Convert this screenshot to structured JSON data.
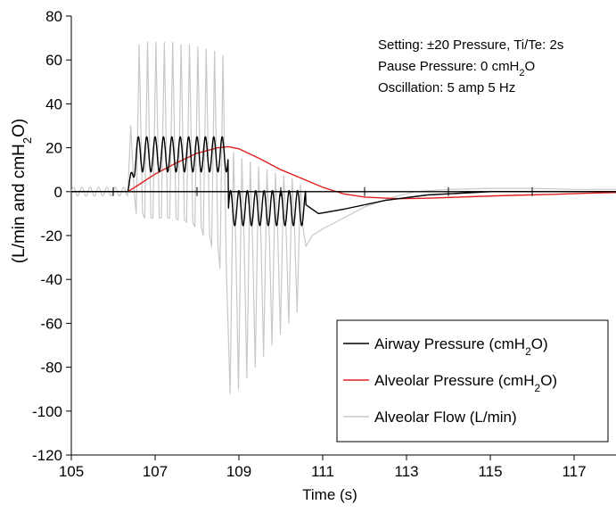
{
  "chart_data": {
    "type": "line",
    "xlabel": "Time (s)",
    "ylabel": {
      "main": "(L/min and cmH",
      "sub": "2",
      "tail": "O)"
    },
    "xlim": [
      105,
      118
    ],
    "ylim": [
      -120,
      80
    ],
    "x_ticks": [
      105,
      107,
      109,
      111,
      113,
      115,
      117
    ],
    "y_ticks": [
      -120,
      -100,
      -80,
      -60,
      -40,
      -20,
      0,
      20,
      40,
      60,
      80
    ],
    "grid": false,
    "legend_position": "bottom-right",
    "annotations": [
      {
        "text": "Setting: ±20 Pressure, Ti/Te: 2s"
      },
      {
        "main": "Pause Pressure: 0 cmH",
        "sub": "2",
        "tail": "O"
      },
      {
        "text": "Oscillation: 5 amp 5 Hz"
      }
    ],
    "series": [
      {
        "name": "Airway Pressure",
        "legend": {
          "main": "Airway Pressure  (cmH",
          "sub": "2",
          "tail": "O)"
        },
        "color": "#000000",
        "pattern": {
          "pre": 0,
          "start": 106.35,
          "insp_end": 108.75,
          "exp_end": 110.6,
          "osc_freq": 5,
          "insp_base": 17,
          "insp_amp": 8,
          "exp_base": -7.5,
          "exp_amp": 8,
          "post": [
            [
              110.6,
              -6
            ],
            [
              110.9,
              -10
            ],
            [
              111.5,
              -8
            ],
            [
              112.5,
              -4
            ],
            [
              113.5,
              -1.5
            ],
            [
              115,
              0
            ],
            [
              118,
              0
            ]
          ]
        }
      },
      {
        "name": "Alveolar Pressure",
        "legend": {
          "main": "Alveolar Pressure  (cmH",
          "sub": "2",
          "tail": "O)"
        },
        "color": "#e02020",
        "points": [
          [
            105,
            0
          ],
          [
            106.35,
            0
          ],
          [
            106.6,
            3
          ],
          [
            107,
            8
          ],
          [
            107.5,
            13
          ],
          [
            108,
            17.5
          ],
          [
            108.5,
            20
          ],
          [
            108.75,
            20.5
          ],
          [
            109,
            19.5
          ],
          [
            109.5,
            15
          ],
          [
            110,
            10
          ],
          [
            110.5,
            6
          ],
          [
            111,
            2
          ],
          [
            111.5,
            -1
          ],
          [
            112,
            -2.5
          ],
          [
            112.8,
            -3.2
          ],
          [
            113.5,
            -3
          ],
          [
            114.5,
            -2.3
          ],
          [
            115.5,
            -1.7
          ],
          [
            116.5,
            -1.2
          ],
          [
            117.5,
            -0.6
          ],
          [
            118,
            -0.4
          ]
        ]
      },
      {
        "name": "Alveolar Flow",
        "legend": {
          "main": "Alveolar Flow (L/min)",
          "sub": "",
          "tail": ""
        },
        "color": "#c8c8c8",
        "pattern": {
          "pre_osc": 2,
          "start": 106.35,
          "insp_end": 108.75,
          "exp_end": 110.6,
          "osc_freq": 5,
          "insp_peaks": [
            30,
            67,
            68,
            68,
            68,
            68,
            67,
            67,
            66,
            65,
            64,
            62
          ],
          "insp_troughs": [
            0,
            -10,
            -12,
            -12,
            -12,
            -12,
            -13,
            -14,
            -16,
            -20,
            -25,
            -35
          ],
          "exp_peaks": [
            60,
            50,
            45,
            38,
            33,
            28,
            24,
            20,
            10
          ],
          "exp_troughs": [
            -92,
            -90,
            -85,
            -80,
            -75,
            -70,
            -65,
            -60,
            -55
          ],
          "post": [
            [
              110.6,
              -25
            ],
            [
              110.75,
              -20
            ],
            [
              111,
              -17
            ],
            [
              111.5,
              -12
            ],
            [
              112,
              -7
            ],
            [
              112.6,
              -3
            ],
            [
              113.2,
              0
            ],
            [
              114,
              1
            ],
            [
              115,
              1.5
            ],
            [
              116,
              1.5
            ],
            [
              117,
              1
            ],
            [
              118,
              1
            ]
          ]
        }
      }
    ]
  }
}
